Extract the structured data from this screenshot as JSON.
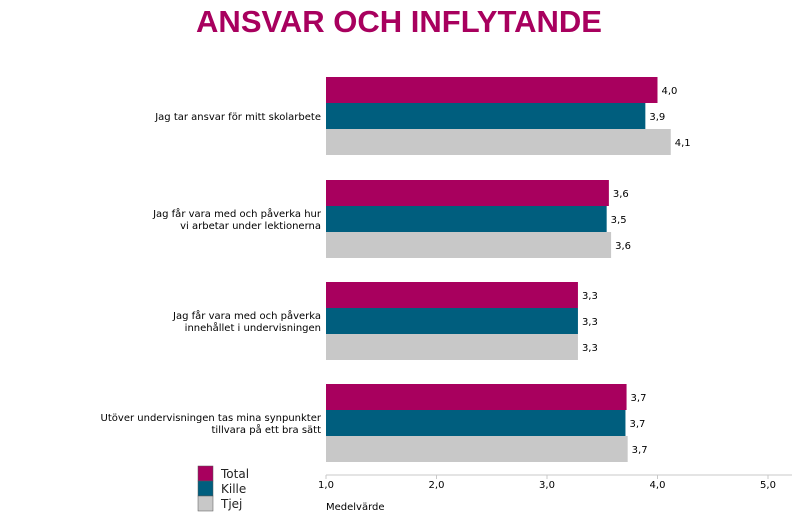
{
  "chart_data": {
    "type": "bar",
    "orientation": "horizontal",
    "title": "ANSVAR OCH INFLYTANDE",
    "xlabel": "Medelvärde",
    "xlim": [
      1.0,
      5.0
    ],
    "xticks": [
      "1,0",
      "2,0",
      "3,0",
      "4,0",
      "5,0"
    ],
    "categories": [
      [
        "Jag tar ansvar för mitt skolarbete"
      ],
      [
        "Jag får vara med och påverka hur",
        "vi arbetar under lektionerna"
      ],
      [
        "Jag får vara med och påverka",
        "innehållet i undervisningen"
      ],
      [
        "Utöver undervisningen tas mina synpunkter",
        "tillvara på ett bra sätt"
      ]
    ],
    "series": [
      {
        "name": "Total",
        "color": "#A8005E",
        "values": [
          4.0,
          3.56,
          3.28,
          3.72
        ],
        "labels": [
          "4,0",
          "3,6",
          "3,3",
          "3,7"
        ]
      },
      {
        "name": "Kille",
        "color": "#005E7E",
        "values": [
          3.89,
          3.54,
          3.28,
          3.71
        ],
        "labels": [
          "3,9",
          "3,5",
          "3,3",
          "3,7"
        ]
      },
      {
        "name": "Tjej",
        "color": "#C8C8C8",
        "values": [
          4.12,
          3.58,
          3.28,
          3.73
        ],
        "labels": [
          "4,1",
          "3,6",
          "3,3",
          "3,7"
        ]
      }
    ],
    "legend_position": "bottom-left"
  }
}
